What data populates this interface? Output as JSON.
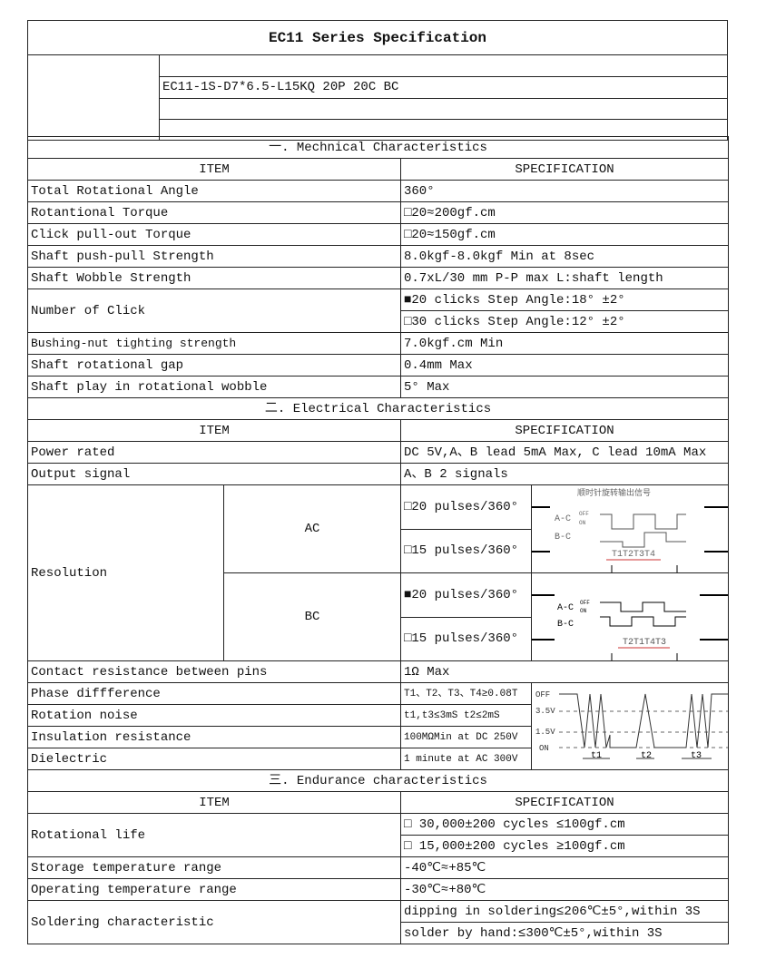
{
  "title": "EC11 Series Specification",
  "model": "EC11-1S-D7*6.5-L15KQ 20P 20C BC",
  "headers": {
    "item": "ITEM",
    "spec": "SPECIFICATION"
  },
  "sections": [
    "一. Mechnical Characteristics",
    "二. Electrical Characteristics",
    "三. Endurance characteristics"
  ],
  "mech": [
    {
      "item": "Total Rotational Angle",
      "spec": "360°"
    },
    {
      "item": "Rotantional Torque",
      "spec": "□20≈200gf.cm"
    },
    {
      "item": "Click pull-out Torque",
      "spec": "□20≈150gf.cm"
    },
    {
      "item": "Shaft push-pull Strength",
      "spec": "8.0kgf-8.0kgf Min at 8sec"
    },
    {
      "item": "Shaft Wobble Strength",
      "spec": "0.7xL/30 mm P-P max L:shaft length"
    },
    {
      "item": "Number of Click",
      "spec": "■20 clicks Step Angle:18° ±2°",
      "spec2": "□30 clicks Step Angle:12° ±2°"
    },
    {
      "item": "Bushing-nut tighting strength",
      "spec": "7.0kgf.cm Min"
    },
    {
      "item": "Shaft rotational gap",
      "spec": "0.4mm Max"
    },
    {
      "item": "Shaft play in rotational wobble",
      "spec": "5° Max"
    }
  ],
  "elec": {
    "power": {
      "item": "Power rated",
      "spec": "DC 5V,A、B lead 5mA Max, C lead 10mA Max"
    },
    "output": {
      "item": "Output signal",
      "spec": "A、B 2 signals"
    },
    "resolution": {
      "item": "Resolution",
      "ac": "AC",
      "bc": "BC",
      "ac1": "□20 pulses/360°",
      "ac2": "□15 pulses/360°",
      "bc1": "■20 pulses/360°",
      "bc2": "□15 pulses/360°",
      "diagram_title": "顺时针旋转输出信号",
      "ac_labels": [
        "A-C",
        "B-C",
        "OFF",
        "ON",
        "T1T2T3T4"
      ],
      "bc_labels": [
        "A-C",
        "B-C",
        "OFF",
        "ON",
        "T2T1T4T3"
      ]
    },
    "contact": {
      "item": "Contact resistance between pins",
      "spec": "1Ω Max"
    },
    "phase": {
      "item": "Phase diffference",
      "spec": "T1、T2、T3、T4≥0.08T"
    },
    "noise": {
      "item": "Rotation noise",
      "spec": "t1,t3≤3mS t2≤2mS"
    },
    "insulation": {
      "item": "Insulation resistance",
      "spec": "100MΩMin at DC 250V"
    },
    "dielectric": {
      "item": "Dielectric",
      "spec": "1 minute at AC 300V"
    },
    "noise_diagram": {
      "off": "OFF",
      "v35": "3.5V",
      "v15": "1.5V",
      "on": "ON",
      "t1": "t1",
      "t2": "t2",
      "t3": "t3"
    }
  },
  "endur": {
    "life": {
      "item": "Rotational life",
      "spec": "□ 30,000±200 cycles ≤100gf.cm",
      "spec2": "□ 15,000±200 cycles ≥100gf.cm"
    },
    "storage": {
      "item": "Storage temperature range",
      "spec": "-40℃≈+85℃"
    },
    "operating": {
      "item": "Operating temperature range",
      "spec": "-30℃≈+80℃"
    },
    "solder": {
      "item": "Soldering characteristic",
      "spec": "dipping in soldering≤206℃±5°,within 3S",
      "spec2": "solder by hand:≤300℃±5°,within 3S"
    }
  }
}
